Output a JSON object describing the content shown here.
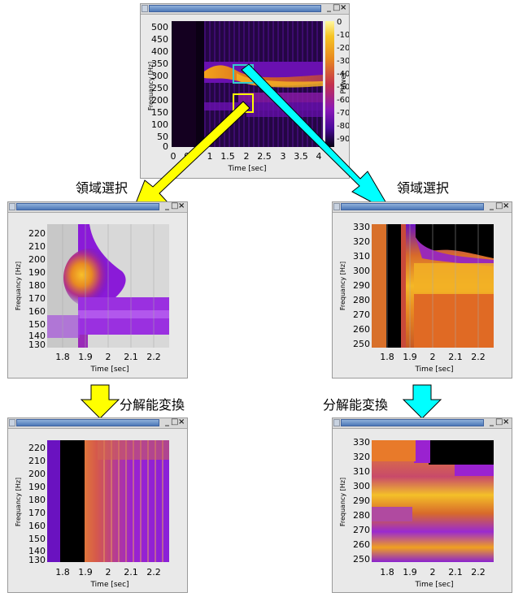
{
  "top": {
    "xlabel": "Time [sec]",
    "ylabel": "Frequancy [Hz]",
    "xticks": [
      "0",
      "0.5",
      "1",
      "1.5",
      "2",
      "2.5",
      "3",
      "3.5",
      "4"
    ],
    "yticks": [
      "500",
      "450",
      "400",
      "350",
      "300",
      "250",
      "200",
      "150",
      "100",
      "50",
      "0"
    ],
    "colorbar_label": "Power",
    "colorbar_ticks": [
      "0",
      "-10",
      "-20",
      "-30",
      "-40",
      "-50",
      "-60",
      "-70",
      "-80",
      "-90"
    ]
  },
  "captions": {
    "left_select": "領域選択",
    "right_select": "領域選択",
    "left_transform": "分解能変換",
    "right_transform": "分解能変換"
  },
  "zoom_low": {
    "xlabel": "Time [sec]",
    "ylabel": "Frequancy [Hz]",
    "xticks": [
      "1.8",
      "1.9",
      "2",
      "2.1",
      "2.2"
    ],
    "yticks": [
      "220",
      "210",
      "200",
      "190",
      "180",
      "170",
      "160",
      "150",
      "140",
      "130"
    ]
  },
  "zoom_high": {
    "xlabel": "Time [sec]",
    "ylabel": "Frequancy [Hz]",
    "xticks": [
      "1.8",
      "1.9",
      "2",
      "2.1",
      "2.2"
    ],
    "yticks": [
      "330",
      "320",
      "310",
      "300",
      "290",
      "280",
      "270",
      "260",
      "250"
    ]
  },
  "window_controls": {
    "minimize": "_",
    "maximize": "□",
    "close": "×"
  },
  "colors": {
    "yellow_arrow": "#ffff00",
    "cyan_arrow": "#00ffff",
    "yellow_box": "#ffff00",
    "cyan_box": "#33cccc",
    "plot_background": "#000000"
  }
}
